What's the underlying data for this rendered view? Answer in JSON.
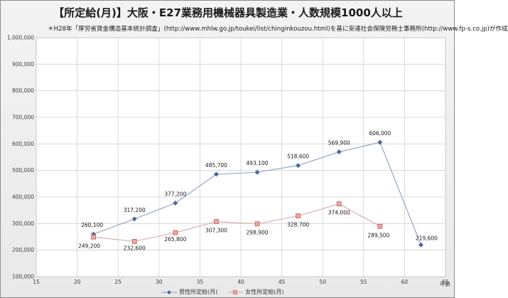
{
  "chart_data": {
    "type": "line",
    "title": "【所定給(月)】大阪・E27業務用機械器具製造業・人数規模1000人以上",
    "subtitle": "＊H28年「厚労省賃金構造基本統計調査」(http://www.mhlw.go.jp/toukei/list/chinginkouzou.html)を基に安達社会保険労務士事務所(http://www.fp-s.co.jp)が作成",
    "xlabel": "年齢",
    "ylabel": "",
    "xlim": [
      15,
      65
    ],
    "ylim": [
      100000,
      1000000
    ],
    "x_ticks": [
      "15",
      "20",
      "25",
      "30",
      "35",
      "40",
      "45",
      "50",
      "55",
      "60",
      "65"
    ],
    "y_ticks": [
      "100,000",
      "200,000",
      "300,000",
      "400,000",
      "500,000",
      "600,000",
      "700,000",
      "800,000",
      "900,000",
      "1,000,000"
    ],
    "grid": true,
    "legend_position": "bottom",
    "series": [
      {
        "name": "男性所定給(月)",
        "color": "#8d9fc2",
        "marker_color": "#4a6aa5",
        "marker": "diamond",
        "x": [
          22,
          27,
          32,
          37,
          42,
          47,
          52,
          57,
          62
        ],
        "values": [
          260100,
          317200,
          377200,
          485700,
          493100,
          518600,
          569900,
          606000,
          219600
        ],
        "labels": [
          "260,100",
          "317,200",
          "377,200",
          "485,700",
          "493,100",
          "518,600",
          "569,900",
          "606,000",
          "219,600"
        ]
      },
      {
        "name": "女性所定給(月)",
        "color": "#d7a6a6",
        "marker_color": "#c96a64",
        "marker": "square",
        "x": [
          22,
          27,
          32,
          37,
          42,
          47,
          52,
          57
        ],
        "values": [
          249200,
          232600,
          265800,
          307300,
          298900,
          328700,
          374000,
          289500
        ],
        "labels": [
          "249,200",
          "232,600",
          "265,800",
          "307,300",
          "298,900",
          "328,700",
          "374,000",
          "289,500"
        ]
      }
    ]
  }
}
